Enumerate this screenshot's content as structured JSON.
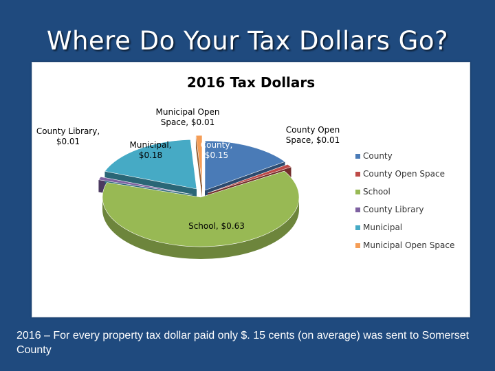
{
  "slide": {
    "title": "Where Do Your Tax Dollars Go?",
    "caption": "2016 – For every property tax dollar paid only $. 15 cents (on average) was sent to Somerset  County"
  },
  "chart_data": {
    "type": "pie",
    "title": "2016 Tax Dollars",
    "legend_position": "right",
    "slices": [
      {
        "name": "County",
        "value": 0.15,
        "label": [
          "County,",
          "$0.15"
        ],
        "color": "#4a7bb7"
      },
      {
        "name": "County Open Space",
        "value": 0.01,
        "label": [
          "County Open",
          "Space, $0.01"
        ],
        "color": "#be4b48"
      },
      {
        "name": "School",
        "value": 0.63,
        "label": [
          "School, $0.63"
        ],
        "color": "#98b954"
      },
      {
        "name": "County Library",
        "value": 0.01,
        "label": [
          "County Library,",
          "$0.01"
        ],
        "color": "#7e62a1"
      },
      {
        "name": "Municipal",
        "value": 0.18,
        "label": [
          "Municipal,",
          "$0.18"
        ],
        "color": "#46aac5"
      },
      {
        "name": "Municipal Open Space",
        "value": 0.01,
        "label": [
          "Municipal Open",
          "Space, $0.01"
        ],
        "color": "#f59d56"
      }
    ]
  }
}
